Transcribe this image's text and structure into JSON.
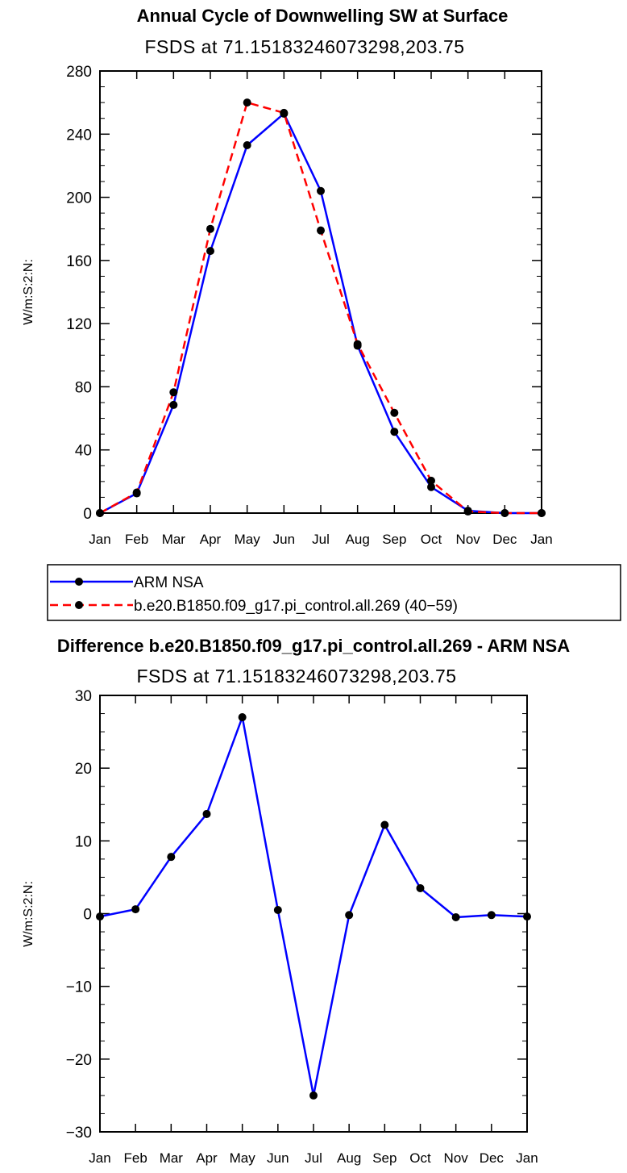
{
  "chart_data": [
    {
      "type": "line",
      "title": "Annual Cycle of Downwelling SW at Surface",
      "subtitle": "FSDS at 71.15183246073298,203.75",
      "ylabel": "W/m:S:2:N:",
      "xlabel": "",
      "ylim": [
        0,
        280
      ],
      "yticks": [
        "0",
        "40",
        "80",
        "120",
        "160",
        "200",
        "240",
        "280"
      ],
      "categories": [
        "Jan",
        "Feb",
        "Mar",
        "Apr",
        "May",
        "Jun",
        "Jul",
        "Aug",
        "Sep",
        "Oct",
        "Nov",
        "Dec",
        "Jan"
      ],
      "legend_position": "below",
      "series": [
        {
          "name": "ARM NSA",
          "color": "#0000ff",
          "dash": "solid",
          "values": [
            0,
            12.5,
            68.5,
            166,
            233,
            253,
            204,
            106,
            51.5,
            16.5,
            1.5,
            0,
            0
          ]
        },
        {
          "name": "b.e20.B1850.f09_g17.pi_control.all.269 (40−59)",
          "color": "#ff0000",
          "dash": "dashed",
          "values": [
            0,
            13,
            76.5,
            180,
            260,
            253.5,
            179,
            107,
            63.5,
            20.5,
            1,
            0,
            0
          ]
        }
      ]
    },
    {
      "type": "line",
      "title": "Difference b.e20.B1850.f09_g17.pi_control.all.269 - ARM NSA",
      "subtitle": "FSDS at 71.15183246073298,203.75",
      "ylabel": "W/m:S:2:N:",
      "xlabel": "",
      "ylim": [
        -30,
        30
      ],
      "yticks": [
        "−30",
        "−20",
        "−10",
        "0",
        "10",
        "20",
        "30"
      ],
      "categories": [
        "Jan",
        "Feb",
        "Mar",
        "Apr",
        "May",
        "Jun",
        "Jul",
        "Aug",
        "Sep",
        "Oct",
        "Nov",
        "Dec",
        "Jan"
      ],
      "series": [
        {
          "color": "#0000ff",
          "dash": "solid",
          "values": [
            -0.4,
            0.6,
            7.8,
            13.7,
            27,
            0.5,
            -25,
            -0.2,
            12.2,
            3.5,
            -0.5,
            -0.2,
            -0.4
          ]
        }
      ]
    }
  ]
}
